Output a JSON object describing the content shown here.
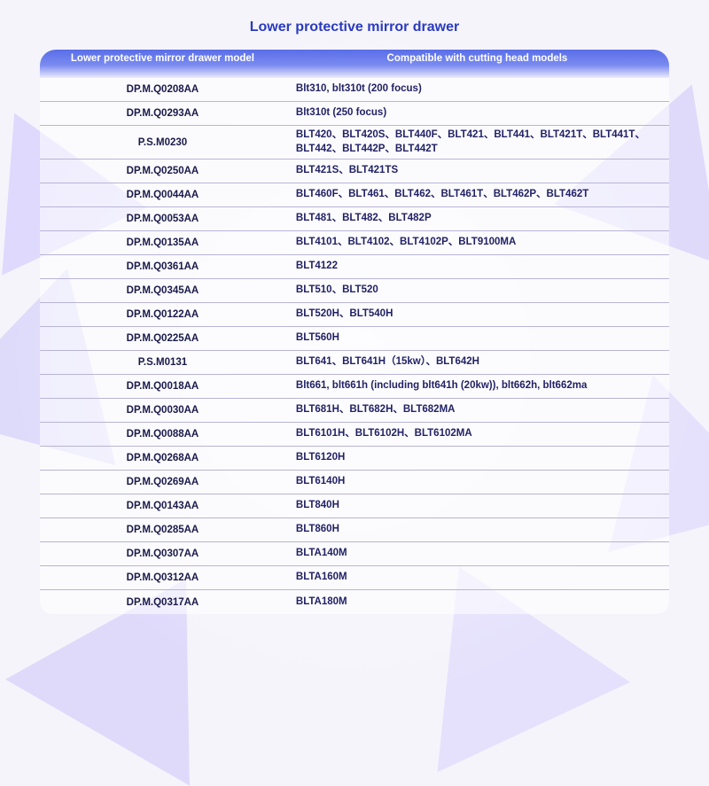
{
  "title": "Lower protective mirror drawer",
  "columns": {
    "left": "Lower protective mirror drawer model",
    "right": "Compatible with cutting head models"
  },
  "colors": {
    "title_color": "#2a3bbd",
    "header_gradient_top": "#5a6ee8",
    "header_gradient_mid": "#7a8bf0",
    "header_text": "#ffffff",
    "row_text": "#1a1a4a",
    "border_color": "#b8b4d9",
    "page_bg": "#f5f4fb",
    "triangle_tint": "#c8befa"
  },
  "typography": {
    "title_fontsize": 16,
    "header_fontsize": 11.5,
    "cell_fontsize": 11.5,
    "font_family": "Arial",
    "cell_weight": 700
  },
  "layout": {
    "col_left_width_pct": 39,
    "col_right_width_pct": 61,
    "table_margin_x": 45,
    "header_radius": 18
  },
  "rows": [
    {
      "model": "DP.M.Q0208AA",
      "compat": "Blt310, blt310t (200 focus)"
    },
    {
      "model": "DP.M.Q0293AA",
      "compat": "Blt310t (250 focus)"
    },
    {
      "model": "P.S.M0230",
      "compat": "BLT420、BLT420S、BLT440F、BLT421、BLT441、BLT421T、BLT441T、BLT442、BLT442P、BLT442T"
    },
    {
      "model": "DP.M.Q0250AA",
      "compat": "BLT421S、BLT421TS"
    },
    {
      "model": "DP.M.Q0044AA",
      "compat": "BLT460F、BLT461、BLT462、BLT461T、BLT462P、BLT462T"
    },
    {
      "model": "DP.M.Q0053AA",
      "compat": "BLT481、BLT482、BLT482P"
    },
    {
      "model": "DP.M.Q0135AA",
      "compat": "BLT4101、BLT4102、BLT4102P、BLT9100MA"
    },
    {
      "model": "DP.M.Q0361AA",
      "compat": "BLT4122"
    },
    {
      "model": "DP.M.Q0345AA",
      "compat": "BLT510、BLT520"
    },
    {
      "model": "DP.M.Q0122AA",
      "compat": "BLT520H、BLT540H"
    },
    {
      "model": "DP.M.Q0225AA",
      "compat": "BLT560H"
    },
    {
      "model": "P.S.M0131",
      "compat": "BLT641、BLT641H（15kw）、BLT642H"
    },
    {
      "model": "DP.M.Q0018AA",
      "compat": "Blt661, blt661h (including blt641h (20kw)), blt662h, blt662ma"
    },
    {
      "model": "DP.M.Q0030AA",
      "compat": "BLT681H、BLT682H、BLT682MA"
    },
    {
      "model": "DP.M.Q0088AA",
      "compat": "BLT6101H、BLT6102H、BLT6102MA"
    },
    {
      "model": "DP.M.Q0268AA",
      "compat": "BLT6120H"
    },
    {
      "model": "DP.M.Q0269AA",
      "compat": "BLT6140H"
    },
    {
      "model": "DP.M.Q0143AA",
      "compat": "BLT840H"
    },
    {
      "model": "DP.M.Q0285AA",
      "compat": "BLT860H"
    },
    {
      "model": "DP.M.Q0307AA",
      "compat": "BLTA140M"
    },
    {
      "model": "DP.M.Q0312AA",
      "compat": "BLTA160M"
    },
    {
      "model": "DP.M.Q0317AA",
      "compat": "BLTA180M"
    }
  ]
}
